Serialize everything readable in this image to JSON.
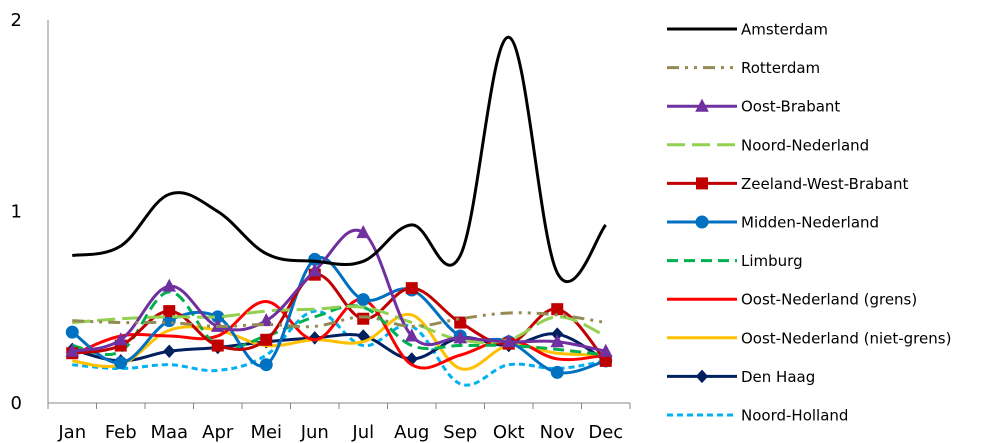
{
  "chart_data": {
    "type": "line",
    "title": "",
    "xlabel": "",
    "ylabel": "",
    "categories": [
      "Jan",
      "Feb",
      "Maa",
      "Apr",
      "Mei",
      "Jun",
      "Jul",
      "Aug",
      "Sep",
      "Okt",
      "Nov",
      "Dec"
    ],
    "ylim": [
      0,
      2
    ],
    "yticks": [
      "0",
      "1",
      "2"
    ],
    "grid": false,
    "smooth": true,
    "legend_position": "right",
    "series": [
      {
        "name": "Amsterdam",
        "color": "#000000",
        "dash": "solid",
        "marker": "none",
        "width": 3,
        "values": [
          0.77,
          0.82,
          1.09,
          1.0,
          0.78,
          0.74,
          0.74,
          0.93,
          0.77,
          1.91,
          0.68,
          0.93
        ]
      },
      {
        "name": "Rotterdam",
        "color": "#948A54",
        "dash": "longdashdot",
        "marker": "none",
        "width": 3,
        "values": [
          0.43,
          0.42,
          0.42,
          0.4,
          0.41,
          0.4,
          0.45,
          0.4,
          0.44,
          0.47,
          0.46,
          0.42
        ]
      },
      {
        "name": "Oost-Brabant",
        "color": "#7030A0",
        "dash": "solid",
        "marker": "triangle",
        "width": 3,
        "values": [
          0.27,
          0.33,
          0.61,
          0.4,
          0.43,
          0.69,
          0.89,
          0.35,
          0.34,
          0.32,
          0.32,
          0.27
        ]
      },
      {
        "name": "Noord-Nederland",
        "color": "#92D050",
        "dash": "longdash",
        "marker": "none",
        "width": 3,
        "values": [
          0.42,
          0.44,
          0.45,
          0.45,
          0.48,
          0.49,
          0.5,
          0.42,
          0.33,
          0.33,
          0.45,
          0.35
        ]
      },
      {
        "name": "Zeeland-West-Brabant",
        "color": "#C00000",
        "dash": "solid",
        "marker": "square",
        "width": 3,
        "values": [
          0.26,
          0.3,
          0.48,
          0.3,
          0.33,
          0.67,
          0.44,
          0.6,
          0.42,
          0.31,
          0.49,
          0.22
        ]
      },
      {
        "name": "Midden-Nederland",
        "color": "#0070C0",
        "dash": "solid",
        "marker": "circle",
        "width": 3,
        "values": [
          0.37,
          0.21,
          0.43,
          0.45,
          0.2,
          0.75,
          0.54,
          0.59,
          0.35,
          0.32,
          0.16,
          0.22
        ]
      },
      {
        "name": "Limburg",
        "color": "#00B050",
        "dash": "dash",
        "marker": "none",
        "width": 3,
        "values": [
          0.3,
          0.27,
          0.58,
          0.3,
          0.35,
          0.45,
          0.5,
          0.3,
          0.3,
          0.3,
          0.28,
          0.25
        ]
      },
      {
        "name": "Oost-Nederland (grens)",
        "color": "#FF0000",
        "dash": "solid",
        "marker": "none",
        "width": 3,
        "values": [
          0.25,
          0.35,
          0.35,
          0.35,
          0.53,
          0.33,
          0.54,
          0.2,
          0.25,
          0.33,
          0.23,
          0.25
        ]
      },
      {
        "name": "Oost-Nederland (niet-grens)",
        "color": "#FFC000",
        "dash": "solid",
        "marker": "none",
        "width": 3,
        "values": [
          0.22,
          0.2,
          0.38,
          0.38,
          0.3,
          0.33,
          0.32,
          0.46,
          0.18,
          0.3,
          0.26,
          0.25
        ]
      },
      {
        "name": "Den Haag",
        "color": "#002060",
        "dash": "solid",
        "marker": "diamond",
        "width": 3,
        "values": [
          0.28,
          0.22,
          0.27,
          0.29,
          0.32,
          0.34,
          0.35,
          0.23,
          0.34,
          0.3,
          0.36,
          0.22
        ]
      },
      {
        "name": "Noord-Holland",
        "color": "#00B0F0",
        "dash": "shortdash",
        "marker": "none",
        "width": 3,
        "values": [
          0.2,
          0.18,
          0.2,
          0.17,
          0.25,
          0.48,
          0.3,
          0.4,
          0.1,
          0.2,
          0.18,
          0.22
        ]
      }
    ]
  }
}
